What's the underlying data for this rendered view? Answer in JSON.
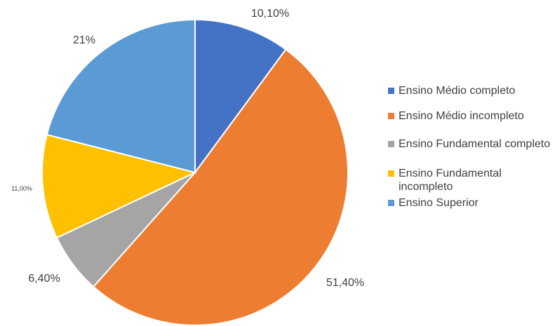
{
  "chart_data": {
    "type": "pie",
    "labels": [
      "Ensino Médio completo",
      "Ensino Médio incompleto",
      "Ensino Fundamental completo",
      "Ensino Fundamental incompleto",
      "Ensino Superior"
    ],
    "values": [
      10.1,
      51.4,
      6.4,
      11.0,
      21.0
    ],
    "data_labels": [
      "10,10%",
      "51,40%",
      "6,40%",
      "11,00%",
      "21%"
    ],
    "colors": [
      "#4472C4",
      "#ED7D31",
      "#A5A5A5",
      "#FFC000",
      "#5B9BD5"
    ],
    "start": "12 o'clock",
    "direction": "clockwise",
    "legend_position": "right"
  }
}
